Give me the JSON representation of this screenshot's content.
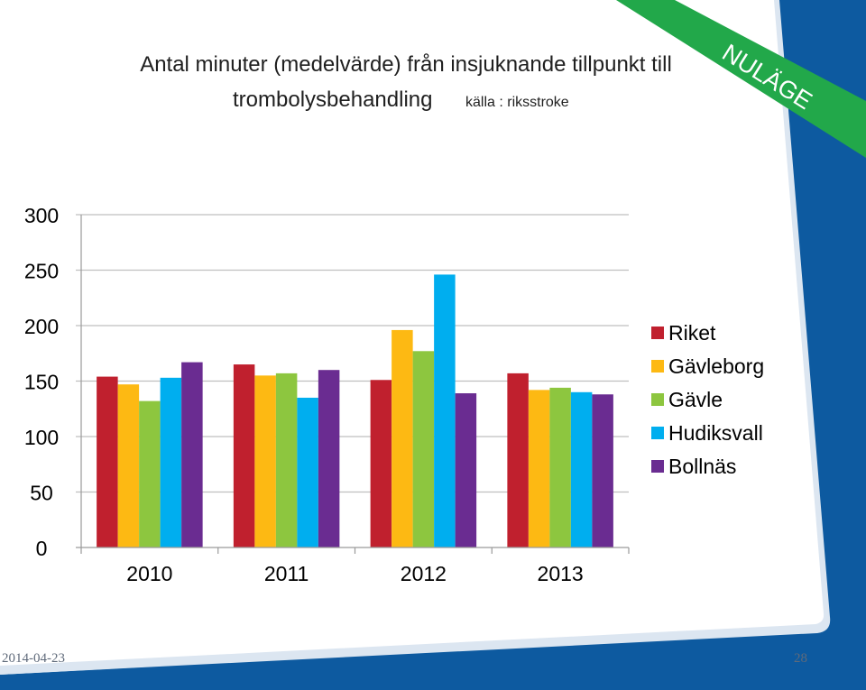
{
  "slide": {
    "title_line1": "Antal minuter (medelvärde) från insjuknande tillpunkt till",
    "title_line2": "trombolysbehandling",
    "source_note": "källa : riksstroke",
    "ribbon_text": "NULÄGE",
    "footer_date": "2014-04-23",
    "page_number": "28",
    "colors": {
      "ribbon": "#22a84a",
      "frame": "#0d5aa0",
      "frame_light": "#dce6f1"
    }
  },
  "chart_data": {
    "type": "bar",
    "title": "",
    "xlabel": "",
    "ylabel": "",
    "categories": [
      "2010",
      "2011",
      "2012",
      "2013"
    ],
    "ylim": [
      0,
      300
    ],
    "yticks": [
      0,
      50,
      100,
      150,
      200,
      250,
      300
    ],
    "grid": true,
    "legend_position": "right",
    "series": [
      {
        "name": "Riket",
        "color": "#c0202e",
        "values": [
          154,
          165,
          151,
          157
        ]
      },
      {
        "name": "Gävleborg",
        "color": "#fdb913",
        "values": [
          147,
          155,
          196,
          142
        ]
      },
      {
        "name": "Gävle",
        "color": "#8dc63f",
        "values": [
          132,
          157,
          177,
          144
        ]
      },
      {
        "name": "Hudiksvall",
        "color": "#00aeef",
        "values": [
          153,
          135,
          246,
          140
        ]
      },
      {
        "name": "Bollnäs",
        "color": "#6a2c91",
        "values": [
          167,
          160,
          139,
          138
        ]
      }
    ]
  }
}
